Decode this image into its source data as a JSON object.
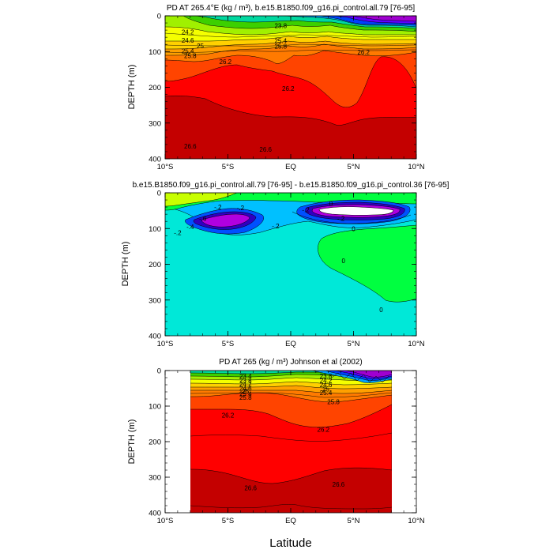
{
  "chart_data": [
    {
      "type": "contour",
      "title": "PD AT 265.4°E (kg / m³), b.e15.B1850.f09_g16.pi_control.all.79 [76-95]",
      "ylabel": "DEPTH (m)",
      "xlabel": "",
      "x_ticks": [
        "10°S",
        "5°S",
        "EQ",
        "5°N",
        "10°N"
      ],
      "y_ticks": [
        "0",
        "100",
        "200",
        "300",
        "400"
      ],
      "xlim": [
        -10,
        10
      ],
      "ylim": [
        400,
        0
      ],
      "contour_labels": [
        {
          "text": "23.8",
          "x": -0.8,
          "y": 28
        },
        {
          "text": "24.2",
          "x": -8.2,
          "y": 45
        },
        {
          "text": "24.6",
          "x": -8.2,
          "y": 68
        },
        {
          "text": "25",
          "x": -7.2,
          "y": 84
        },
        {
          "text": "25.4",
          "x": -8.2,
          "y": 98
        },
        {
          "text": "25.8",
          "x": -8.0,
          "y": 112
        },
        {
          "text": "25.4",
          "x": -0.8,
          "y": 70
        },
        {
          "text": "25.8",
          "x": -0.8,
          "y": 85
        },
        {
          "text": "26.2",
          "x": -5.2,
          "y": 128
        },
        {
          "text": "26.2",
          "x": -0.2,
          "y": 203
        },
        {
          "text": "26.2",
          "x": 5.8,
          "y": 102
        },
        {
          "text": "26.6",
          "x": -8.0,
          "y": 365
        },
        {
          "text": "26.6",
          "x": -2.0,
          "y": 374
        }
      ],
      "bands": [
        {
          "value": 27.0,
          "color": "#c40000"
        },
        {
          "value": 26.6,
          "color": "#ff0000"
        },
        {
          "value": 26.2,
          "color": "#ff4400"
        },
        {
          "value": 25.8,
          "color": "#ff7a00"
        },
        {
          "value": 25.4,
          "color": "#ffa000"
        },
        {
          "value": 25.0,
          "color": "#ffd000"
        },
        {
          "value": 24.6,
          "color": "#f4ff00"
        },
        {
          "value": 24.2,
          "color": "#a0f000"
        },
        {
          "value": 23.8,
          "color": "#3cd000"
        },
        {
          "value": 23.4,
          "color": "#00d8a0"
        },
        {
          "value": 23.0,
          "color": "#00a0ff"
        },
        {
          "value": 22.6,
          "color": "#0040ff"
        },
        {
          "value": 22.2,
          "color": "#6000ff"
        },
        {
          "value": 21.8,
          "color": "#a000d0"
        }
      ]
    },
    {
      "type": "contour",
      "title": "b.e15.B1850.f09_g16.pi_control.all.79 [76-95] - b.e15.B1850.f09_g16.pi_control.36 [76-95]",
      "ylabel": "DEPTH (m)",
      "xlabel": "",
      "x_ticks": [
        "10°S",
        "5°S",
        "EQ",
        "5°N",
        "10°N"
      ],
      "y_ticks": [
        "0",
        "100",
        "200",
        "300",
        "400"
      ],
      "xlim": [
        -10,
        10
      ],
      "ylim": [
        400,
        0
      ],
      "contour_labels": [
        {
          "text": "-.2",
          "x": -5.8,
          "y": 40
        },
        {
          "text": "-.2",
          "x": -4.0,
          "y": 42
        },
        {
          "text": "-.2",
          "x": 1.2,
          "y": 48
        },
        {
          "text": "-.6",
          "x": -7.0,
          "y": 72
        },
        {
          "text": "-.4",
          "x": -8.0,
          "y": 95
        },
        {
          "text": "-.2",
          "x": -9.0,
          "y": 112
        },
        {
          "text": "-.2",
          "x": -1.2,
          "y": 93
        },
        {
          "text": "-.2",
          "x": 4.0,
          "y": 72
        },
        {
          "text": "0",
          "x": 3.2,
          "y": 30
        },
        {
          "text": "0",
          "x": 5.0,
          "y": 100
        },
        {
          "text": "0",
          "x": 4.2,
          "y": 190
        },
        {
          "text": "0",
          "x": 7.2,
          "y": 327
        }
      ],
      "bands": [
        {
          "value": 0.4,
          "color": "#c8ff00"
        },
        {
          "value": 0.2,
          "color": "#00ff40"
        },
        {
          "value": 0.0,
          "color": "#00e8d8"
        },
        {
          "value": -0.2,
          "color": "#00c0ff"
        },
        {
          "value": -0.4,
          "color": "#0050ff"
        },
        {
          "value": -0.6,
          "color": "#3000c0"
        },
        {
          "value": -0.8,
          "color": "#b000e0"
        },
        {
          "value": -1.0,
          "color": "#ffffff"
        }
      ]
    },
    {
      "type": "contour",
      "title": "PD AT 265 (kg / m³) Johnson et al (2002)",
      "ylabel": "DEPTH (m)",
      "xlabel": "Latitude",
      "x_ticks": [
        "10°S",
        "5°S",
        "EQ",
        "5°N",
        "10°N"
      ],
      "y_ticks": [
        "0",
        "100",
        "200",
        "300",
        "400"
      ],
      "xlim": [
        -10,
        10
      ],
      "ylim": [
        400,
        0
      ],
      "data_extent_x": [
        -8,
        8
      ],
      "contour_labels": [
        {
          "text": "23.4",
          "x": -3.6,
          "y": 15
        },
        {
          "text": "23.8",
          "x": -3.6,
          "y": 28
        },
        {
          "text": "24.2",
          "x": -3.6,
          "y": 38
        },
        {
          "text": "24.6",
          "x": -3.6,
          "y": 50
        },
        {
          "text": "25",
          "x": -3.6,
          "y": 58
        },
        {
          "text": "25.4",
          "x": -3.6,
          "y": 66
        },
        {
          "text": "25.8",
          "x": -3.6,
          "y": 75
        },
        {
          "text": "23.8",
          "x": 2.8,
          "y": 15
        },
        {
          "text": "24.2",
          "x": 2.8,
          "y": 28
        },
        {
          "text": "24.6",
          "x": 2.8,
          "y": 40
        },
        {
          "text": "25",
          "x": 2.8,
          "y": 52
        },
        {
          "text": "25.4",
          "x": 2.8,
          "y": 62
        },
        {
          "text": "25.8",
          "x": 3.4,
          "y": 88
        },
        {
          "text": "26.2",
          "x": -5.0,
          "y": 125
        },
        {
          "text": "26.2",
          "x": 2.6,
          "y": 165
        },
        {
          "text": "26.6",
          "x": -3.2,
          "y": 330
        },
        {
          "text": "26.6",
          "x": 3.8,
          "y": 320
        }
      ],
      "bands": [
        {
          "value": 27.0,
          "color": "#c40000"
        },
        {
          "value": 26.6,
          "color": "#ff0000"
        },
        {
          "value": 26.2,
          "color": "#ff4400"
        },
        {
          "value": 25.8,
          "color": "#ff7a00"
        },
        {
          "value": 25.4,
          "color": "#ffa000"
        },
        {
          "value": 25.0,
          "color": "#ffd000"
        },
        {
          "value": 24.6,
          "color": "#f4ff00"
        },
        {
          "value": 24.2,
          "color": "#a0f000"
        },
        {
          "value": 23.8,
          "color": "#3cd000"
        },
        {
          "value": 23.4,
          "color": "#00d8a0"
        },
        {
          "value": 23.0,
          "color": "#00a0ff"
        },
        {
          "value": 22.6,
          "color": "#0040ff"
        },
        {
          "value": 22.2,
          "color": "#6000ff"
        },
        {
          "value": 21.8,
          "color": "#a000d0"
        }
      ]
    }
  ]
}
